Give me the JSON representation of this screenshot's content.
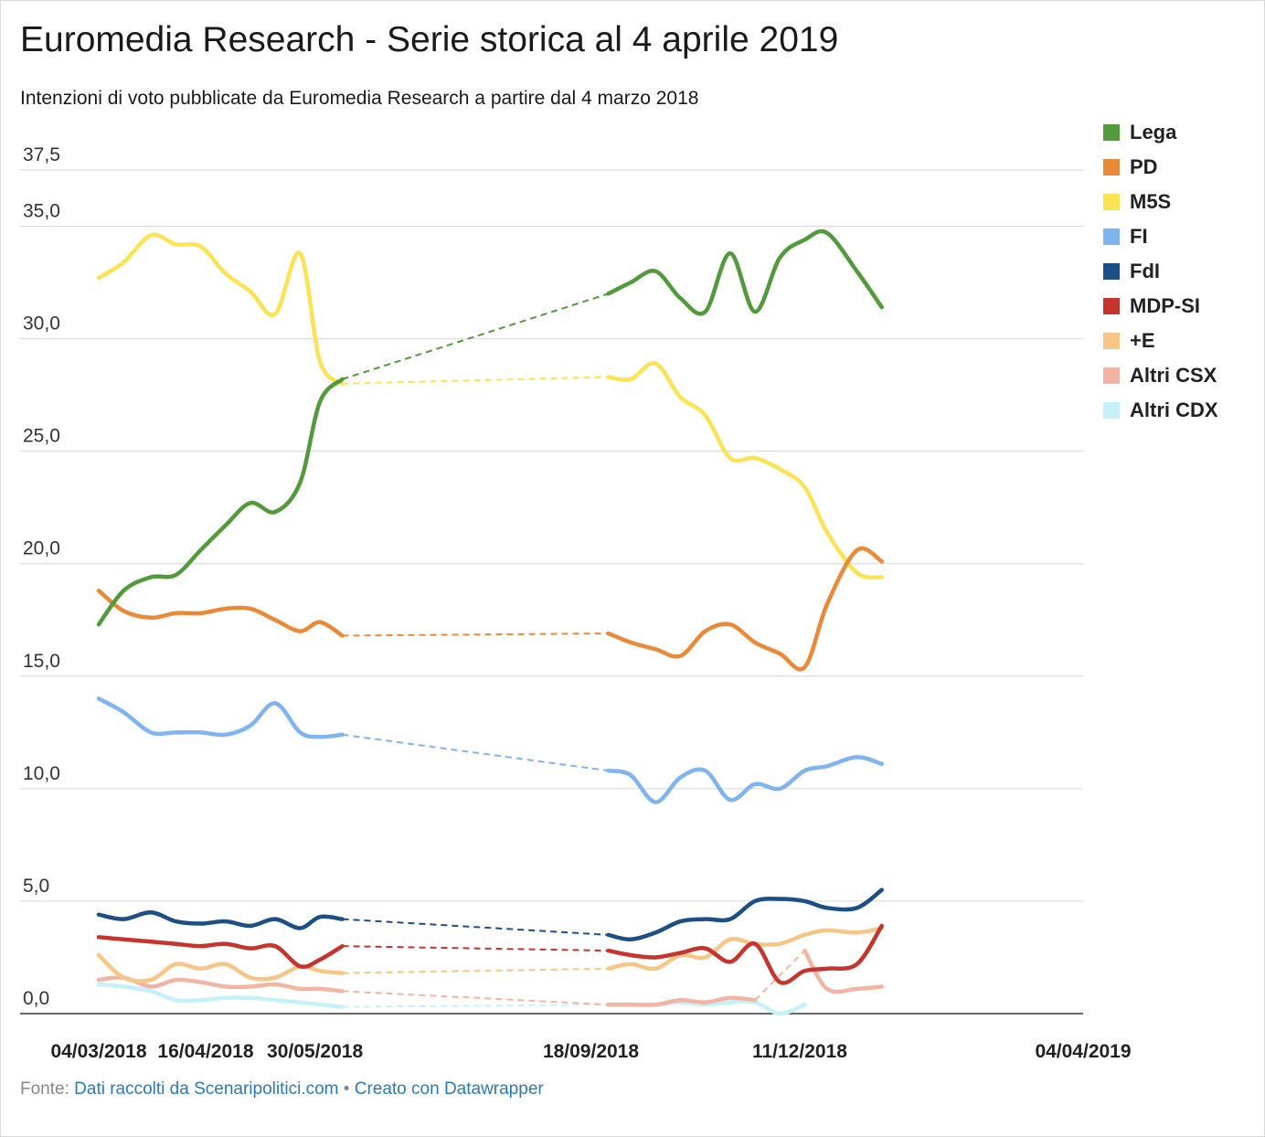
{
  "title": "Euromedia Research - Serie storica al 4 aprile 2019",
  "subtitle": "Intenzioni di voto pubblicate da Euromedia Research a partire dal 4 marzo 2018",
  "footer": {
    "prefix": "Fonte:",
    "source_link": "Dati raccolti da Scenaripolitici.com",
    "separator": "•",
    "tool_link": "Creato con Datawrapper"
  },
  "chart_data": {
    "type": "line",
    "title": "Euromedia Research - Serie storica al 4 aprile 2019",
    "xlabel": "",
    "ylabel": "",
    "ylim": [
      0,
      37.5
    ],
    "y_ticks": [
      "0,0",
      "5,0",
      "10,0",
      "15,0",
      "20,0",
      "25,0",
      "30,0",
      "35,0",
      "37,5"
    ],
    "x_tick_labels": [
      "04/03/2018",
      "16/04/2018",
      "30/05/2018",
      "18/09/2018",
      "11/12/2018",
      "04/04/2019"
    ],
    "x_tick_dates": [
      "2018-03-04",
      "2018-04-16",
      "2018-05-30",
      "2018-09-18",
      "2018-12-11",
      "2019-04-04"
    ],
    "grid": true,
    "legend_position": "right",
    "x": [
      "2018-03-04",
      "2018-03-14",
      "2018-03-25",
      "2018-04-04",
      "2018-04-14",
      "2018-04-24",
      "2018-05-04",
      "2018-05-14",
      "2018-05-24",
      "2018-06-01",
      "2018-06-10",
      "2018-06-20",
      "2018-07-01",
      "2018-07-10",
      "2018-07-19",
      "2018-07-27",
      "2018-08-05",
      "2018-08-15",
      "2018-08-26",
      "2018-09-04",
      "2018-09-14",
      "2018-09-25",
      "2018-10-04",
      "2018-10-14",
      "2018-10-24",
      "2018-11-03",
      "2018-11-13",
      "2018-11-23",
      "2018-12-03",
      "2018-12-13",
      "2018-12-22",
      "2019-01-03",
      "2019-01-13",
      "2019-01-22",
      "2019-02-01",
      "2019-02-10",
      "2019-02-20",
      "2019-03-02",
      "2019-03-13",
      "2019-03-24",
      "2019-04-04"
    ],
    "series": [
      {
        "name": "Lega",
        "color": "#529a3b",
        "values": [
          17.3,
          18.8,
          19.4,
          19.5,
          20.6,
          21.7,
          22.7,
          22.3,
          23.6,
          27.2,
          28.2,
          null,
          null,
          null,
          null,
          null,
          null,
          null,
          null,
          null,
          null,
          32.0,
          32.5,
          33.0,
          31.8,
          31.2,
          33.8,
          31.2,
          33.6,
          34.4,
          34.7,
          33.0,
          31.4,
          null,
          null,
          null,
          null,
          null,
          null,
          null,
          null
        ],
        "gaps": [
          [
            10,
            21
          ]
        ]
      },
      {
        "name": "PD",
        "color": "#ea8a38",
        "values": [
          18.8,
          17.9,
          17.6,
          17.8,
          17.8,
          18.0,
          18.0,
          17.5,
          17.0,
          17.4,
          16.8,
          null,
          null,
          null,
          null,
          null,
          null,
          null,
          null,
          null,
          null,
          16.9,
          16.5,
          16.2,
          15.9,
          17.0,
          17.3,
          16.5,
          16.0,
          15.4,
          18.2,
          20.6,
          20.1,
          null,
          null,
          null,
          null,
          null,
          null,
          null,
          null
        ],
        "gaps": [
          [
            10,
            21
          ]
        ]
      },
      {
        "name": "M5S",
        "color": "#fbe354",
        "values": [
          32.7,
          33.4,
          34.6,
          34.2,
          34.1,
          32.9,
          32.1,
          31.1,
          33.8,
          29.0,
          28.0,
          null,
          null,
          null,
          null,
          null,
          null,
          null,
          null,
          null,
          null,
          28.3,
          28.2,
          28.9,
          27.4,
          26.6,
          24.7,
          24.7,
          24.2,
          23.4,
          21.4,
          19.6,
          19.4,
          null,
          null,
          null,
          null,
          null,
          null,
          null,
          null
        ],
        "gaps": [
          [
            10,
            21
          ]
        ]
      },
      {
        "name": "FI",
        "color": "#7fb4f0",
        "values": [
          14.0,
          13.4,
          12.5,
          12.5,
          12.5,
          12.4,
          12.8,
          13.8,
          12.5,
          12.3,
          12.4,
          null,
          null,
          null,
          null,
          null,
          null,
          null,
          null,
          null,
          null,
          10.8,
          10.6,
          9.4,
          10.5,
          10.8,
          9.5,
          10.2,
          10.0,
          10.8,
          11.0,
          11.4,
          11.1,
          null,
          null,
          null,
          null,
          null,
          null,
          null,
          null
        ],
        "gaps": [
          [
            10,
            21
          ]
        ]
      },
      {
        "name": "FdI",
        "color": "#1d4f87",
        "values": [
          4.4,
          4.2,
          4.5,
          4.1,
          4.0,
          4.1,
          3.9,
          4.2,
          3.8,
          4.3,
          4.2,
          null,
          null,
          null,
          null,
          null,
          null,
          null,
          null,
          null,
          null,
          3.5,
          3.3,
          3.6,
          4.1,
          4.2,
          4.2,
          5.0,
          5.1,
          5.0,
          4.7,
          4.7,
          5.5,
          null,
          null,
          null,
          null,
          null,
          null,
          null,
          null
        ],
        "gaps": [
          [
            10,
            21
          ]
        ]
      },
      {
        "name": "MDP-SI",
        "color": "#c5342d",
        "values": [
          3.4,
          3.3,
          3.2,
          3.1,
          3.0,
          3.1,
          2.9,
          3.0,
          2.1,
          2.4,
          3.0,
          null,
          null,
          null,
          null,
          null,
          null,
          null,
          null,
          null,
          null,
          2.8,
          2.6,
          2.5,
          2.7,
          2.9,
          2.3,
          3.1,
          1.4,
          1.9,
          2.0,
          2.2,
          3.9,
          null,
          null,
          null,
          null,
          null,
          null,
          null,
          null
        ],
        "gaps": [
          [
            10,
            21
          ]
        ]
      },
      {
        "name": "+E",
        "color": "#f5c685",
        "values": [
          2.6,
          1.6,
          1.5,
          2.2,
          2.0,
          2.2,
          1.6,
          1.6,
          2.1,
          1.9,
          1.8,
          null,
          null,
          null,
          null,
          null,
          null,
          null,
          null,
          null,
          null,
          2.0,
          2.2,
          2.0,
          2.6,
          2.5,
          3.3,
          3.1,
          3.1,
          3.5,
          3.7,
          3.6,
          3.8,
          null,
          null,
          null,
          null,
          null,
          null,
          null,
          null
        ],
        "gaps": [
          [
            10,
            21
          ]
        ]
      },
      {
        "name": "Altri CSX",
        "color": "#f2b5a4",
        "values": [
          1.5,
          1.6,
          1.2,
          1.5,
          1.4,
          1.2,
          1.2,
          1.3,
          1.1,
          1.1,
          1.0,
          null,
          null,
          null,
          null,
          null,
          null,
          null,
          null,
          null,
          null,
          0.4,
          0.4,
          0.4,
          0.6,
          0.5,
          0.7,
          0.6,
          null,
          2.8,
          1.1,
          1.1,
          1.2,
          null,
          null,
          null,
          null,
          null,
          null,
          null,
          null
        ],
        "gaps": [
          [
            10,
            21
          ],
          [
            27,
            29
          ]
        ]
      },
      {
        "name": "Altri CDX",
        "color": "#c5f1fb",
        "values": [
          1.3,
          1.2,
          1.0,
          0.6,
          0.6,
          0.7,
          0.7,
          0.6,
          0.5,
          0.4,
          0.3,
          null,
          null,
          null,
          null,
          null,
          null,
          null,
          null,
          null,
          null,
          0.4,
          0.4,
          0.4,
          0.5,
          0.4,
          0.5,
          0.5,
          0.0,
          0.4,
          null,
          null,
          null,
          null,
          null,
          null,
          null,
          null,
          null,
          null,
          null
        ],
        "gaps": [
          [
            10,
            21
          ]
        ]
      }
    ]
  }
}
